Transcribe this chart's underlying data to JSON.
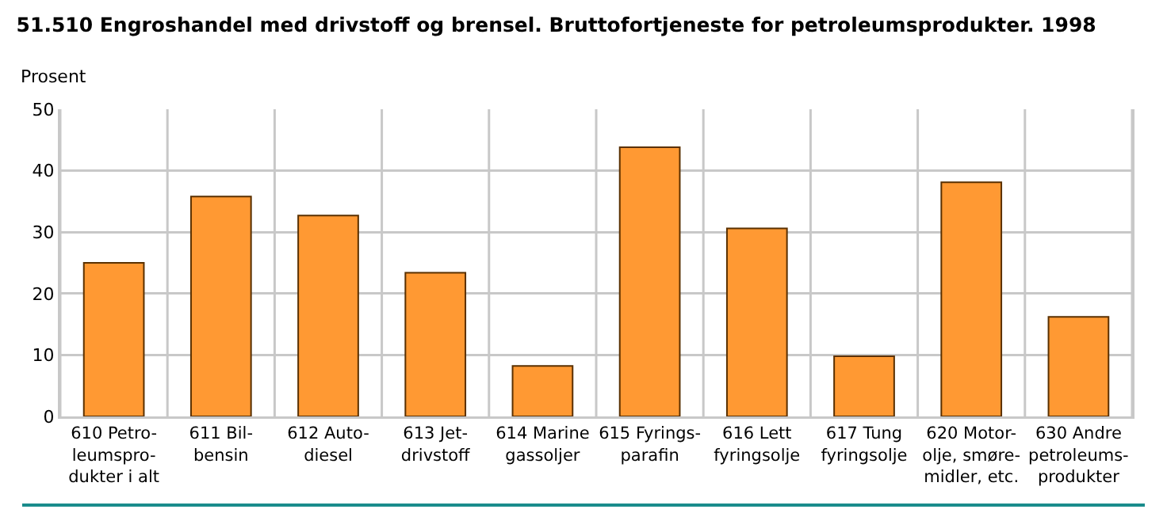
{
  "chart_data": {
    "type": "bar",
    "title": "51.510 Engroshandel med drivstoff og brensel. Bruttofortjeneste for petroleumsprodukter. 1998",
    "ylabel": "Prosent",
    "categories": [
      "610 Petro-\nleumspro-\ndukter i alt",
      "611 Bil-\nbensin",
      "612 Auto-\ndiesel",
      "613 Jet-\ndrivstoff",
      "614 Marine\ngassoljer",
      "615 Fyrings-\nparafin",
      "616 Lett\nfyringsolje",
      "617 Tung\nfyringsolje",
      "620 Motor-\nolje, smøre-\nmidler, etc.",
      "630 Andre\npetroleums-\nprodukter"
    ],
    "values": [
      25.0,
      35.8,
      32.7,
      23.4,
      8.2,
      43.8,
      30.6,
      9.8,
      38.1,
      16.2
    ],
    "color": "#ff9933",
    "ylim": [
      0,
      50
    ],
    "yticks": [
      0,
      10,
      20,
      30,
      40,
      50
    ],
    "grid": true,
    "legend": false
  }
}
